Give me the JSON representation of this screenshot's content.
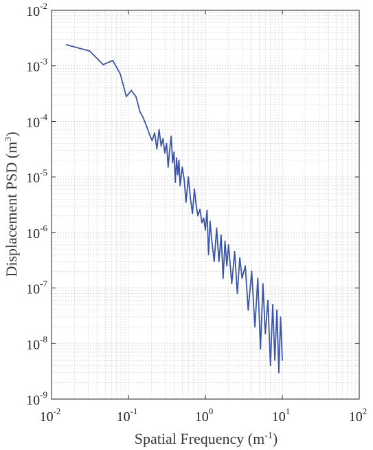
{
  "chart_data": {
    "type": "line",
    "title": "",
    "xlabel": "Spatial Frequency  (m",
    "xlabel_sup": "-1",
    "xlabel_end": ")",
    "ylabel": "Displacement PSD (m",
    "ylabel_sup": "3",
    "ylabel_end": ")",
    "x_scale": "log",
    "y_scale": "log",
    "xlim": [
      0.01,
      100
    ],
    "ylim": [
      1e-09,
      0.01
    ],
    "grid": true,
    "minor_grid": true,
    "line_color": "#3a55a8",
    "x_ticks": [
      {
        "value": 0.01,
        "base": "10",
        "exp": "-2"
      },
      {
        "value": 0.1,
        "base": "10",
        "exp": "-1"
      },
      {
        "value": 1,
        "base": "10",
        "exp": "0"
      },
      {
        "value": 10,
        "base": "10",
        "exp": "1"
      },
      {
        "value": 100,
        "base": "10",
        "exp": "2"
      }
    ],
    "y_ticks": [
      {
        "value": 1e-09,
        "base": "10",
        "exp": "-9"
      },
      {
        "value": 1e-08,
        "base": "10",
        "exp": "-8"
      },
      {
        "value": 1e-07,
        "base": "10",
        "exp": "-7"
      },
      {
        "value": 1e-06,
        "base": "10",
        "exp": "-6"
      },
      {
        "value": 1e-05,
        "base": "10",
        "exp": "-5"
      },
      {
        "value": 0.0001,
        "base": "10",
        "exp": "-4"
      },
      {
        "value": 0.001,
        "base": "10",
        "exp": "-3"
      },
      {
        "value": 0.01,
        "base": "10",
        "exp": "-2"
      }
    ],
    "series": [
      {
        "x": [
          0.0156,
          0.0313,
          0.0469,
          0.0625,
          0.0781,
          0.0938,
          0.109,
          0.125,
          0.141,
          0.156,
          0.172,
          0.188,
          0.203,
          0.219,
          0.234,
          0.25,
          0.266,
          0.281,
          0.297,
          0.313,
          0.328,
          0.344,
          0.359,
          0.375,
          0.391,
          0.406,
          0.422,
          0.438,
          0.453,
          0.469,
          0.5,
          0.53,
          0.56,
          0.6,
          0.64,
          0.68,
          0.72,
          0.76,
          0.8,
          0.85,
          0.9,
          0.95,
          1.0,
          1.05,
          1.1,
          1.15,
          1.2,
          1.3,
          1.4,
          1.5,
          1.6,
          1.7,
          1.8,
          1.9,
          2.0,
          2.2,
          2.4,
          2.6,
          2.8,
          3.0,
          3.3,
          3.6,
          4.0,
          4.4,
          4.8,
          5.2,
          5.6,
          6.0,
          6.5,
          7.0,
          7.5,
          8.0,
          8.5,
          9.0,
          9.5,
          10.0
        ],
        "y": [
          0.0024,
          0.00185,
          0.00105,
          0.00125,
          0.00072,
          0.00028,
          0.00036,
          0.00028,
          0.00015,
          0.000115,
          8.2e-05,
          5.8e-05,
          4.5e-05,
          6.2e-05,
          3.2e-05,
          7.1e-05,
          3.6e-05,
          4.9e-05,
          2.7e-05,
          4e-05,
          1.5e-05,
          3.2e-05,
          5.4e-05,
          1.8e-05,
          2.8e-05,
          8e-06,
          2.2e-05,
          1.1e-05,
          2e-05,
          7e-06,
          1.5e-05,
          9e-06,
          3.5e-06,
          1e-05,
          4e-06,
          2.2e-06,
          6e-06,
          3e-06,
          2e-06,
          2.6e-06,
          1.5e-06,
          1.8e-06,
          1.1e-06,
          2.5e-06,
          4e-07,
          1.6e-06,
          8e-07,
          3e-07,
          1.2e-06,
          3e-07,
          9e-07,
          1.5e-07,
          7e-07,
          2.5e-07,
          6e-07,
          1.2e-07,
          4.5e-07,
          8e-08,
          3.5e-07,
          1.5e-07,
          2.5e-07,
          4e-08,
          2e-07,
          2e-08,
          1.5e-07,
          8e-09,
          1.2e-07,
          1.5e-08,
          6e-08,
          4e-09,
          5e-08,
          5e-09,
          4e-08,
          3e-09,
          3e-08,
          5e-09
        ]
      }
    ]
  }
}
